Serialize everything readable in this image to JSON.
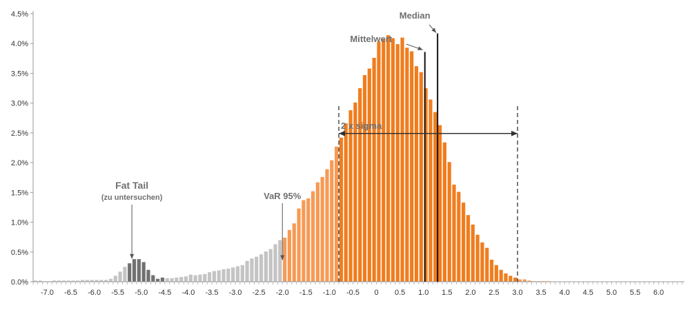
{
  "chart_data": {
    "type": "bar",
    "title": "",
    "xlabel": "",
    "ylabel": "",
    "xlim": [
      -7.3,
      6.55
    ],
    "ylim": [
      0,
      0.045
    ],
    "x_ticks": [
      "-7.0",
      "-6.5",
      "-6.0",
      "-5.5",
      "-5.0",
      "-4.5",
      "-4.0",
      "-3.5",
      "-3.0",
      "-2.5",
      "-2.0",
      "-1.5",
      "-1.0",
      "-0.5",
      "0",
      "0.5",
      "1.0",
      "1.5",
      "2.0",
      "2.5",
      "3.0",
      "3.5",
      "4.0",
      "4.5",
      "5.0",
      "5.5",
      "6.0"
    ],
    "y_ticks": [
      "0.0%",
      "0.5%",
      "1.0%",
      "1.5%",
      "2.0%",
      "2.5%",
      "3.0%",
      "3.5%",
      "4.0%",
      "4.5%"
    ],
    "bin_width": 0.1,
    "first_bin_center": -7.25,
    "values": [
      0.0002,
      0.0002,
      0.0001,
      0.0001,
      0.0002,
      0.0002,
      0.0002,
      0.0002,
      0.0002,
      0.0002,
      0.0003,
      0.0003,
      0.0003,
      0.0003,
      0.0003,
      0.0003,
      0.0005,
      0.001,
      0.0017,
      0.0025,
      0.0031,
      0.0038,
      0.0038,
      0.0033,
      0.002,
      0.0011,
      0.0005,
      0.0007,
      0.0006,
      0.0006,
      0.0007,
      0.0008,
      0.0009,
      0.0012,
      0.0011,
      0.0012,
      0.0013,
      0.0016,
      0.0018,
      0.0019,
      0.0021,
      0.0022,
      0.0024,
      0.0026,
      0.0028,
      0.0035,
      0.0039,
      0.0042,
      0.0046,
      0.0051,
      0.0055,
      0.0063,
      0.007,
      0.0074,
      0.0087,
      0.0098,
      0.0123,
      0.0137,
      0.014,
      0.0152,
      0.0167,
      0.0176,
      0.0189,
      0.0204,
      0.0227,
      0.0242,
      0.0266,
      0.0288,
      0.0301,
      0.0325,
      0.0347,
      0.0358,
      0.0376,
      0.0403,
      0.0408,
      0.0414,
      0.0409,
      0.0399,
      0.041,
      0.0393,
      0.0387,
      0.0362,
      0.0352,
      0.0325,
      0.0306,
      0.0285,
      0.0263,
      0.0234,
      0.0201,
      0.0163,
      0.0151,
      0.0133,
      0.0112,
      0.0096,
      0.0079,
      0.0066,
      0.0057,
      0.0037,
      0.0028,
      0.002,
      0.0014,
      0.001,
      0.0007,
      0.0004,
      0.0004,
      0.0002,
      0.0001,
      0.0001,
      0.0001,
      0.0001
    ],
    "series_colors": {
      "fat_tail": "#717171",
      "left_tail": "#c4c4c4",
      "outside_sigma": "#f79a55",
      "within_sigma": "#f07d1e"
    },
    "color_ranges": {
      "fat_tail": [
        -5.3,
        -4.5
      ],
      "left_tail_end": -1.95,
      "within_sigma": [
        -0.8,
        3.0
      ]
    },
    "markers": {
      "mittelwert_x": 1.03,
      "median_x": 1.3,
      "sigma_left_x": -0.8,
      "sigma_right_x": 3.0
    },
    "annotations": {
      "median": "Median",
      "mittelwert": "Mittelwert",
      "sigma": "2 x sigma",
      "fat_tail": "Fat Tail",
      "fat_tail_sub": "(zu untersuchen)",
      "var": "VaR 95%"
    },
    "annotation_targets": {
      "fat_tail_x": -5.2,
      "fat_tail_y": 0.0035,
      "var_x": -2.0,
      "var_y": 0.0033,
      "median_y": 0.0417,
      "mittelwert_y": 0.0386,
      "sigma_y": 0.0249
    },
    "grid": false,
    "legend": "none"
  }
}
